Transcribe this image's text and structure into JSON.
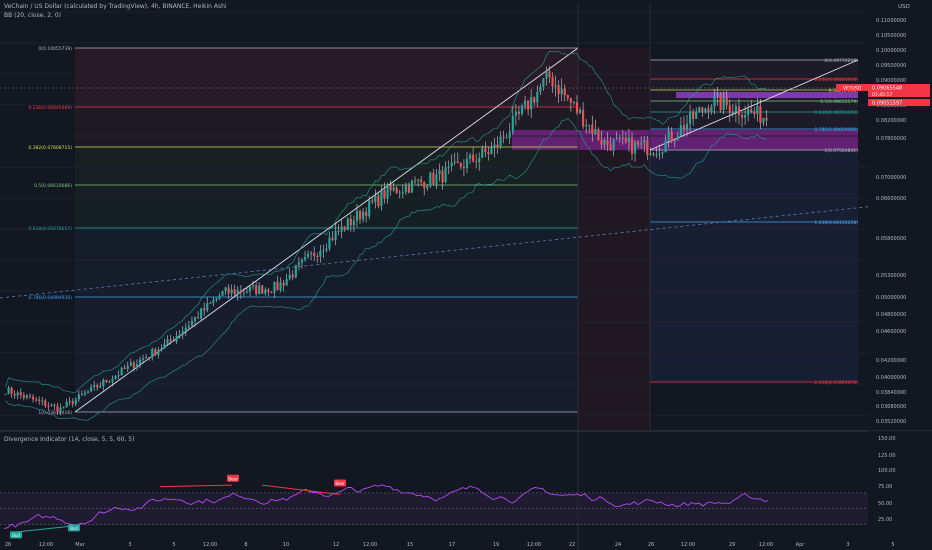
{
  "header": {
    "symbol_line": "VeChain / US Dollar (calculated by TradingView), 4h, BINANCE, Heikin Ashi",
    "bb_line": "BB (20, close, 2, 0)",
    "osc_line": "Divergence Indicator (14, close, 5, 5, 60, 5)"
  },
  "price_axis": {
    "currency": "USD",
    "labels": [
      "0.11000000",
      "0.10500000",
      "0.10000000",
      "0.09500000",
      "0.09000000",
      "0.08500000",
      "0.08200000",
      "0.07800000",
      "0.07000000",
      "0.06600000",
      "0.05800000",
      "0.05300000",
      "0.05000000",
      "0.04800000",
      "0.04600000",
      "0.04200000",
      "0.04000000",
      "0.03840000",
      "0.03680000",
      "0.03520000"
    ],
    "tag_symbol": "VETUSD",
    "tag_price": "0.09065548",
    "tag_time": "01:45:17",
    "tag_low": "0.09051597"
  },
  "osc_axis": {
    "labels": [
      "150.00",
      "125.00",
      "100.00",
      "75.00",
      "50.00",
      "25.00"
    ]
  },
  "time_axis": {
    "labels": [
      "26",
      "12:00",
      "Mar",
      "3",
      "5",
      "12:00",
      "8",
      "10",
      "12",
      "12:00",
      "15",
      "17",
      "19",
      "12:00",
      "22",
      "24",
      "26",
      "12:00",
      "29",
      "12:00",
      "Apr",
      "3",
      "5"
    ]
  },
  "fib_left": [
    {
      "label": "0(0.10055739)",
      "color": "#b2b5be"
    },
    {
      "label": "0.236(0.08840489)",
      "color": "#f23645"
    },
    {
      "label": "0.382(0.07608715)",
      "color": "#d4e157"
    },
    {
      "label": "0.5(0.06619086)",
      "color": "#81c784"
    },
    {
      "label": "0.618(0.05678657)",
      "color": "#26a69a"
    },
    {
      "label": "0.786(0.04994930)",
      "color": "#42a5f5"
    },
    {
      "label": "1(0.03616416)",
      "color": "#b2b5be"
    }
  ],
  "fib_right": [
    {
      "label": "0(0.09770219)",
      "color": "#b2b5be"
    },
    {
      "label": "0.236(0.09264936)",
      "color": "#f23645"
    },
    {
      "label": "0.382(0.088)",
      "color": "#d4e157"
    },
    {
      "label": "0.5(0.08655579)",
      "color": "#81c784"
    },
    {
      "label": "0.618(0.08353354)",
      "color": "#26a69a"
    },
    {
      "label": "0.786(0.08019006)",
      "color": "#42a5f5"
    },
    {
      "label": "1(0.07526841)",
      "color": "#b2b5be"
    },
    {
      "label": "1.618(0.06135258)",
      "color": "#42a5f5"
    },
    {
      "label": "2.618(0.03929976)",
      "color": "#f23645"
    }
  ],
  "signals": [
    "Bull",
    "Bull",
    "Bear",
    "Bear"
  ],
  "colors": {
    "up": "#26a69a",
    "down": "#ef5350",
    "background": "#131722",
    "osc": "#b24bf3"
  },
  "chart_data": {
    "type": "line",
    "title": "VeChain / US Dollar, 4h, Heikin Ashi",
    "xlabel": "",
    "ylabel": "USD",
    "x": [
      "Feb 26",
      "Mar 1",
      "Mar 3",
      "Mar 5",
      "Mar 8",
      "Mar 10",
      "Mar 12",
      "Mar 15",
      "Mar 17",
      "Mar 19",
      "Mar 22",
      "Mar 24",
      "Mar 26",
      "Mar 29",
      "Mar 31"
    ],
    "series": [
      {
        "name": "VETUSD",
        "values": [
          0.0415,
          0.038,
          0.044,
          0.05,
          0.059,
          0.06,
          0.069,
          0.077,
          0.08,
          0.085,
          0.098,
          0.086,
          0.085,
          0.0935,
          0.0906
        ]
      }
    ],
    "ylim": [
      0.035,
      0.111
    ]
  }
}
